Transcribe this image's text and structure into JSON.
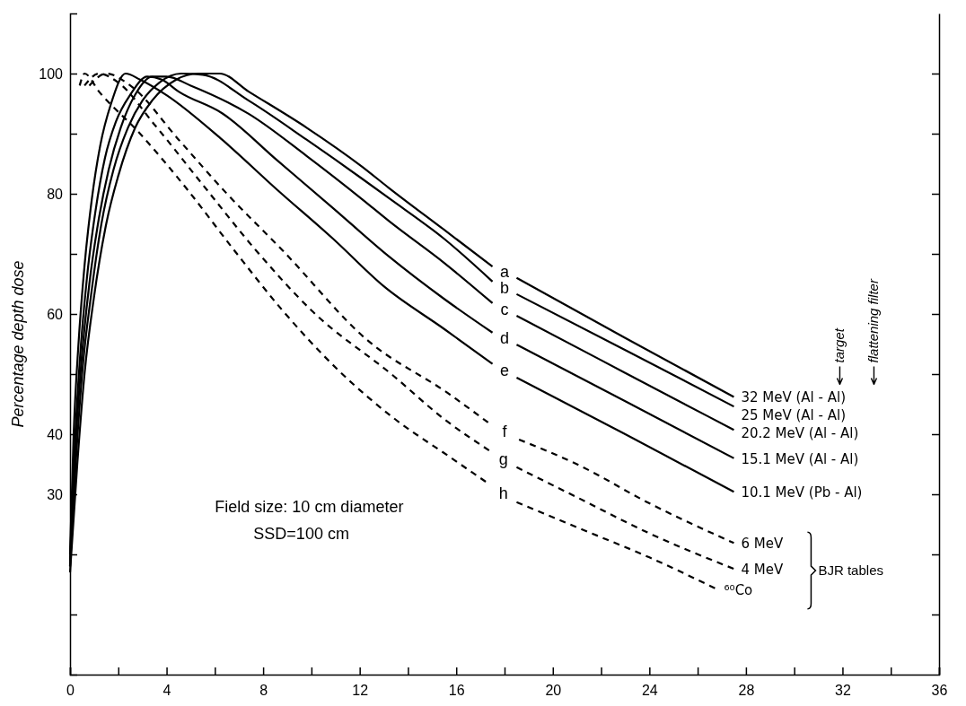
{
  "chart_data": {
    "type": "line",
    "ylabel": "Percentage depth dose",
    "xlim": [
      0,
      36
    ],
    "ylim": [
      0,
      110
    ],
    "xticks": [
      0,
      {
        "value": 2,
        "label": null
      },
      4,
      {
        "value": 6,
        "label": null
      },
      8,
      {
        "value": 10,
        "label": null
      },
      12,
      {
        "value": 14,
        "label": null
      },
      16,
      {
        "value": 18,
        "label": null
      },
      20,
      {
        "value": 22,
        "label": null
      },
      24,
      {
        "value": 26,
        "label": null
      },
      28,
      {
        "value": 30,
        "label": null
      },
      32,
      {
        "value": 34,
        "label": null
      },
      36
    ],
    "yticks": [
      {
        "value": 10,
        "label": null
      },
      {
        "value": 20,
        "label": null
      },
      30,
      40,
      {
        "value": 50,
        "label": null
      },
      60,
      {
        "value": 70,
        "label": null
      },
      80,
      {
        "value": 90,
        "label": null
      },
      100
    ],
    "series": [
      {
        "name": "32 MeV (Al - Al)",
        "color": "#000000",
        "line_style": "solid",
        "x": [
          0,
          0.3,
          0.6,
          1.0,
          1.5,
          2.0,
          2.7,
          3.4,
          4.4,
          5.3,
          6.2,
          7.4,
          9.8,
          12.1,
          13.2,
          15.5,
          17.5,
          18,
          18.5,
          23,
          27.5
        ],
        "values": [
          17,
          35,
          50,
          63,
          75,
          83,
          91,
          95.5,
          99,
          100,
          100,
          97,
          91,
          84.5,
          81,
          74,
          67.9,
          null,
          66,
          56,
          46.2
        ]
      },
      {
        "name": "25 MeV (Al - Al)",
        "color": "#000000",
        "line_style": "solid",
        "x": [
          0,
          0.25,
          0.5,
          0.9,
          1.3,
          1.8,
          2.4,
          3.0,
          3.7,
          4.6,
          5.5,
          7.4,
          9.8,
          12.1,
          13.2,
          15.5,
          17.5,
          18,
          18.5,
          23,
          27.5
        ],
        "values": [
          18,
          36,
          50,
          64,
          75,
          84,
          91,
          95.5,
          98.5,
          100,
          99.8,
          95.5,
          89,
          82.5,
          79.3,
          72.5,
          65.4,
          null,
          63.3,
          54,
          44.6
        ]
      },
      {
        "name": "20.2 MeV (Al - Al)",
        "color": "#000000",
        "line_style": "solid",
        "x": [
          0,
          0.2,
          0.45,
          0.8,
          1.2,
          1.6,
          2.1,
          2.7,
          3.4,
          4.0,
          5.0,
          7.4,
          9.8,
          12.1,
          13.2,
          15.5,
          17.5,
          18,
          18.5,
          23,
          27.5
        ],
        "values": [
          18,
          36,
          51,
          65,
          76,
          84,
          91,
          96.5,
          99.5,
          99.5,
          98,
          93.3,
          86.3,
          79.1,
          75.5,
          68.5,
          61.8,
          null,
          59.7,
          50.2,
          40.7
        ]
      },
      {
        "name": "15.1 MeV (Al - Al)",
        "color": "#000000",
        "line_style": "solid",
        "x": [
          0,
          0.18,
          0.4,
          0.7,
          1.05,
          1.45,
          1.9,
          2.5,
          3.2,
          3.8,
          4.5,
          6.3,
          8.6,
          10.9,
          13.2,
          15.5,
          17.5,
          18,
          18.5,
          23,
          27.5
        ],
        "values": [
          19,
          37,
          52,
          66,
          77,
          86,
          92,
          96.5,
          99.5,
          99,
          97,
          93.4,
          85.5,
          77.6,
          69.6,
          62.5,
          56.9,
          null,
          54.9,
          45.5,
          36
        ]
      },
      {
        "name": "10.1 MeV (Pb - Al)",
        "color": "#000000",
        "line_style": "solid",
        "x": [
          0,
          0.15,
          0.35,
          0.6,
          0.9,
          1.25,
          1.7,
          2.3,
          2.9,
          4.0,
          6.3,
          8.6,
          10.9,
          13,
          15.5,
          17.5,
          18,
          18.5,
          23,
          27.5
        ],
        "values": [
          20,
          40,
          55,
          68,
          79,
          88,
          95,
          100,
          99,
          96.4,
          89,
          80.6,
          72.5,
          64.6,
          57.5,
          51.7,
          null,
          49.4,
          40,
          30.4
        ]
      },
      {
        "name": "6 MeV",
        "color": "#000000",
        "line_style": "dashed",
        "x": [
          0.8,
          1.5,
          2.5,
          4.5,
          6.5,
          8.8,
          12.3,
          15.7,
          17.4,
          18,
          18.6,
          21,
          24,
          27.5
        ],
        "values": [
          98,
          100,
          98,
          89,
          80,
          70.6,
          55.7,
          46.7,
          41.7,
          null,
          39.1,
          35,
          28.5,
          21.9
        ]
      },
      {
        "name": "4 MeV",
        "color": "#000000",
        "line_style": "dashed",
        "x": [
          0.6,
          1.2,
          2,
          3.5,
          5.5,
          7.7,
          10,
          13.4,
          15.5,
          17.4,
          18,
          18.5,
          21,
          24,
          27.5
        ],
        "values": [
          98,
          100,
          98.5,
          91.5,
          81.5,
          70.6,
          60.6,
          49.7,
          42.5,
          37.2,
          null,
          34.5,
          29.5,
          23.5,
          17.6
        ]
      },
      {
        "name": "⁶⁰Co",
        "color": "#000000",
        "line_style": "dashed",
        "x": [
          0.4,
          0.6,
          1.2,
          2.9,
          4.8,
          6.8,
          8.8,
          11.1,
          13.4,
          15.7,
          17.4,
          18,
          18.5,
          21,
          24,
          26.8
        ],
        "values": [
          98,
          100,
          97,
          90,
          81,
          70.6,
          60.6,
          50.7,
          42.7,
          36.3,
          31.6,
          null,
          28.7,
          24.5,
          19.5,
          14.2
        ]
      }
    ],
    "annotations": [
      "Field size: 10 cm diameter",
      "SSD=100 cm",
      "target",
      "flattening filter",
      "BJR tables",
      "a",
      "b",
      "c",
      "d",
      "e",
      "f",
      "g",
      "h"
    ]
  }
}
